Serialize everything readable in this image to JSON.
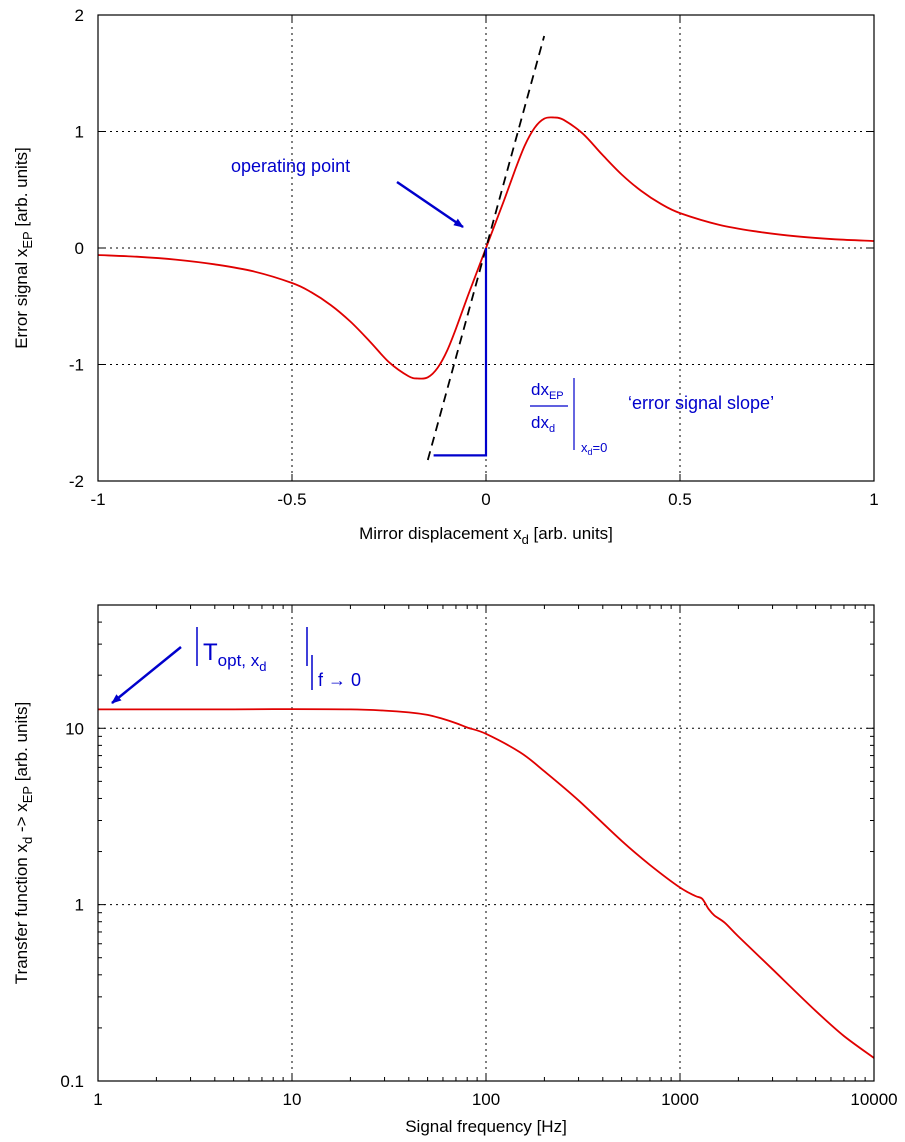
{
  "chart_data": [
    {
      "type": "line",
      "xlabel": "Mirror displacement x",
      "xlabel_sub": "d",
      "xlabel_suffix": " [arb. units]",
      "ylabel": "Error signal x",
      "ylabel_sub": "EP",
      "ylabel_suffix": " [arb. units]",
      "xlim": [
        -1,
        1
      ],
      "ylim": [
        -2,
        2
      ],
      "xticks": [
        -1,
        -0.5,
        0,
        0.5,
        1
      ],
      "yticks": [
        -2,
        -1,
        0,
        1,
        2
      ],
      "xtick_labels": [
        "-1",
        "-0.5",
        "0",
        "0.5",
        "1"
      ],
      "ytick_labels": [
        "-2",
        "-1",
        "0",
        "1",
        "2"
      ],
      "grid": true,
      "series": [
        {
          "color": "#e00000",
          "style": "solid",
          "x": [
            -1.0,
            -0.9,
            -0.8,
            -0.7,
            -0.6,
            -0.5,
            -0.45,
            -0.4,
            -0.35,
            -0.3,
            -0.25,
            -0.2,
            -0.175,
            -0.15,
            -0.125,
            -0.1,
            -0.075,
            -0.05,
            -0.025,
            0.0,
            0.025,
            0.05,
            0.075,
            0.1,
            0.125,
            0.15,
            0.175,
            0.2,
            0.25,
            0.3,
            0.35,
            0.4,
            0.45,
            0.5,
            0.6,
            0.7,
            0.8,
            0.9,
            1.0
          ],
          "y": [
            -0.06,
            -0.075,
            -0.1,
            -0.14,
            -0.2,
            -0.3,
            -0.38,
            -0.49,
            -0.63,
            -0.8,
            -0.98,
            -1.1,
            -1.12,
            -1.11,
            -1.03,
            -0.88,
            -0.67,
            -0.44,
            -0.22,
            0.0,
            0.22,
            0.44,
            0.67,
            0.88,
            1.03,
            1.11,
            1.12,
            1.1,
            0.98,
            0.8,
            0.63,
            0.49,
            0.38,
            0.3,
            0.2,
            0.14,
            0.1,
            0.075,
            0.06
          ]
        },
        {
          "color": "#000000",
          "style": "dashed",
          "x": [
            -0.15,
            0.15
          ],
          "y": [
            -1.82,
            1.82
          ]
        },
        {
          "color": "#0000cc",
          "style": "solid",
          "x": [
            -0.135,
            0.0,
            0.0
          ],
          "y": [
            -1.78,
            -1.78,
            0.0
          ]
        }
      ],
      "annotations": [
        {
          "text": "operating point",
          "arrow_to": [
            0.0,
            0.0
          ]
        },
        {
          "text": "‘error signal slope’"
        }
      ],
      "slope_label": {
        "num": "dx",
        "num_sub": "EP",
        "den": "dx",
        "den_sub": "d",
        "eval": "x",
        "eval_sub": "d",
        "eval_suffix": "=0"
      }
    },
    {
      "type": "line",
      "xscale": "log",
      "yscale": "log",
      "xlabel": "Signal frequency [Hz]",
      "ylabel": "Transfer function x",
      "ylabel_sub": "d",
      "ylabel_mid": " -> x",
      "ylabel_sub2": "EP",
      "ylabel_suffix": " [arb. units]",
      "xlim": [
        1,
        10000
      ],
      "ylim": [
        0.1,
        50
      ],
      "xticks": [
        1,
        10,
        100,
        1000,
        10000
      ],
      "yticks": [
        0.1,
        1,
        10
      ],
      "xtick_labels": [
        "1",
        "10",
        "100",
        "1000",
        "10000"
      ],
      "ytick_labels": [
        "0.1",
        "1",
        "10"
      ],
      "grid": true,
      "series": [
        {
          "color": "#e00000",
          "style": "solid",
          "x": [
            1,
            2,
            5,
            10,
            20,
            30,
            40,
            50,
            60,
            70,
            80,
            100,
            150,
            200,
            300,
            500,
            700,
            1000,
            1200,
            1300,
            1400,
            1500,
            1700,
            2000,
            3000,
            5000,
            7000,
            10000
          ],
          "y": [
            12.8,
            12.8,
            12.8,
            12.85,
            12.8,
            12.6,
            12.3,
            11.9,
            11.3,
            10.7,
            10.1,
            9.3,
            7.3,
            5.7,
            3.9,
            2.3,
            1.68,
            1.25,
            1.12,
            1.08,
            0.95,
            0.87,
            0.79,
            0.66,
            0.43,
            0.25,
            0.18,
            0.135
          ]
        }
      ],
      "annotations": [
        {
          "text": "T",
          "sub": "opt, x",
          "sub2": "d",
          "eval": "f → 0"
        }
      ]
    }
  ]
}
